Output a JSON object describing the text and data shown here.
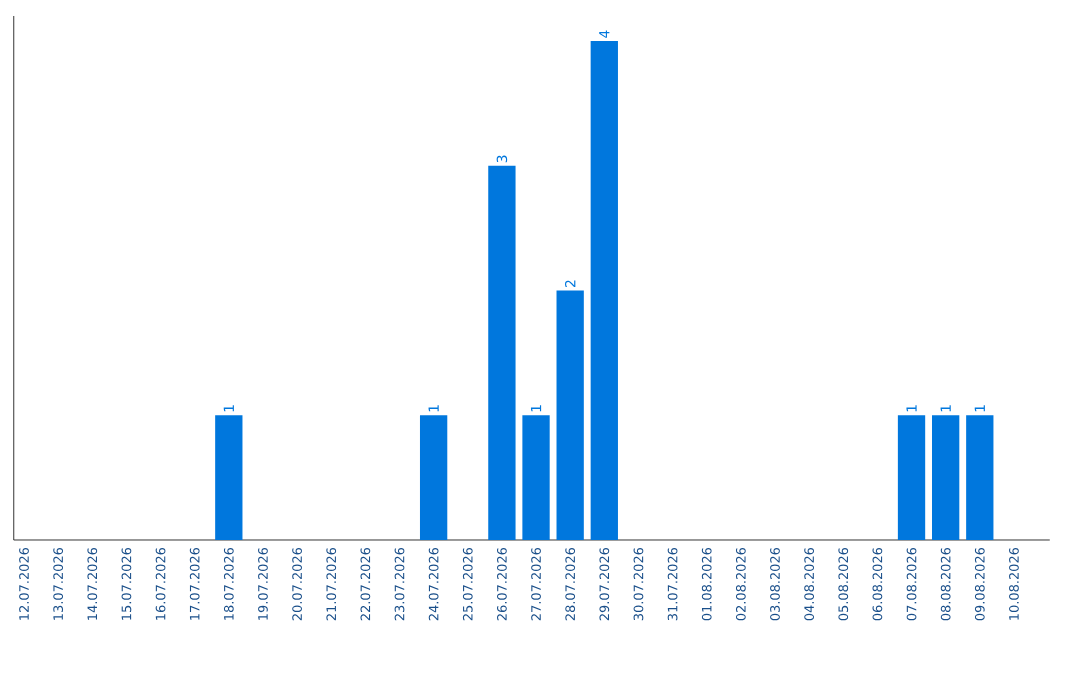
{
  "chart_data": {
    "type": "bar",
    "categories": [
      "12.07.2026",
      "13.07.2026",
      "14.07.2026",
      "15.07.2026",
      "16.07.2026",
      "17.07.2026",
      "18.07.2026",
      "19.07.2026",
      "20.07.2026",
      "21.07.2026",
      "22.07.2026",
      "23.07.2026",
      "24.07.2026",
      "25.07.2026",
      "26.07.2026",
      "27.07.2026",
      "28.07.2026",
      "29.07.2026",
      "30.07.2026",
      "31.07.2026",
      "01.08.2026",
      "02.08.2026",
      "03.08.2026",
      "04.08.2026",
      "05.08.2026",
      "06.08.2026",
      "07.08.2026",
      "08.08.2026",
      "09.08.2026",
      "10.08.2026"
    ],
    "values": [
      null,
      null,
      null,
      null,
      null,
      null,
      1,
      null,
      null,
      null,
      null,
      null,
      1,
      null,
      3,
      1,
      2,
      4,
      null,
      null,
      null,
      null,
      null,
      null,
      null,
      null,
      1,
      1,
      1,
      null
    ],
    "color": "#0077dd",
    "ylim": [
      0,
      4.2
    ],
    "data_labels": true,
    "tick_labels": "x"
  }
}
